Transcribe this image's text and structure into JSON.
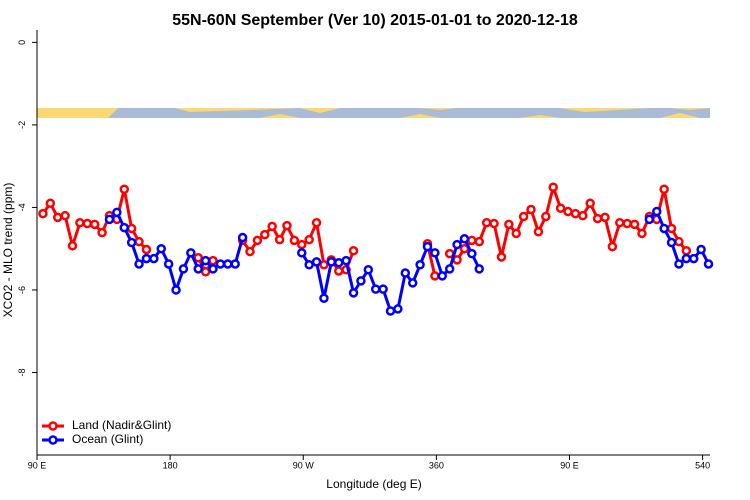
{
  "chart_data": {
    "type": "line",
    "title": "55N-60N September (Ver 10)   2015-01-01 to 2020-12-18",
    "x_label": "Longitude (deg E)",
    "y_label": "XCO2 - MLO trend (ppm)",
    "xlim": [
      90,
      545
    ],
    "xticks": [
      {
        "value": 90,
        "label": "90 E"
      },
      180,
      {
        "value": 270,
        "label": "90 W"
      },
      360,
      {
        "value": 450,
        "label": "90 E"
      },
      540
    ],
    "ylim": [
      -10,
      0.3
    ],
    "yticks": [
      0,
      -2,
      -4,
      -6,
      -8
    ],
    "legend": "bottom-left",
    "x": [
      94,
      99,
      104,
      109,
      114,
      119,
      124,
      129,
      134,
      139,
      144,
      149,
      154,
      159,
      164,
      169,
      174,
      179,
      184,
      189,
      194,
      199,
      204,
      209,
      214,
      219,
      224,
      229,
      234,
      239,
      244,
      249,
      254,
      259,
      264,
      269,
      274,
      279,
      284,
      289,
      294,
      299,
      304,
      309,
      314,
      319,
      324,
      329,
      334,
      339,
      344,
      349,
      354,
      359,
      364,
      369,
      374,
      379,
      384,
      389,
      394,
      399,
      404,
      409,
      414,
      419,
      424,
      429,
      434,
      439,
      444,
      449,
      454,
      459,
      464,
      469,
      474,
      479,
      484,
      489,
      494,
      499,
      504,
      509,
      514,
      519,
      524,
      529,
      534,
      539,
      544
    ],
    "series": [
      {
        "name": "Land (Nadir&Glint)",
        "color": "#ff0000",
        "values": [
          -4.15,
          -3.9,
          -4.24,
          -4.2,
          -4.93,
          -4.37,
          -4.39,
          -4.41,
          -4.61,
          -4.2,
          -4.29,
          -3.56,
          -4.51,
          -4.83,
          -5.02,
          null,
          null,
          null,
          null,
          null,
          null,
          -5.22,
          -5.56,
          -5.29,
          null,
          null,
          null,
          -4.8,
          -5.07,
          -4.8,
          -4.66,
          -4.46,
          -4.78,
          -4.44,
          -4.8,
          -4.9,
          -4.78,
          -4.37,
          -5.39,
          -5.27,
          -5.54,
          -5.51,
          -5.05,
          null,
          null,
          null,
          null,
          null,
          null,
          null,
          null,
          null,
          -4.88,
          -5.66,
          null,
          -5.12,
          -5.27,
          -5.0,
          -4.8,
          -4.83,
          -4.37,
          -4.39,
          -5.2,
          -4.41,
          -4.63,
          -4.22,
          -4.05,
          -4.59,
          -4.22,
          -3.51,
          -4.02,
          -4.1,
          -4.15,
          -4.2,
          -3.9,
          -4.27,
          -4.24,
          -4.95,
          -4.37,
          -4.39,
          -4.41,
          -4.63,
          -4.22,
          -4.29,
          -3.56,
          -4.51,
          -4.83,
          -5.05,
          null,
          null,
          null
        ]
      },
      {
        "name": "Ocean (Glint)",
        "color": "#0000ff",
        "values": [
          null,
          null,
          null,
          null,
          null,
          null,
          null,
          null,
          null,
          -4.29,
          -4.12,
          -4.49,
          -4.85,
          -5.37,
          -5.24,
          -5.24,
          -5.0,
          -5.37,
          -6.0,
          -5.49,
          -5.1,
          -5.49,
          -5.29,
          -5.49,
          -5.37,
          -5.37,
          -5.37,
          -4.73,
          null,
          null,
          null,
          null,
          null,
          null,
          null,
          -5.1,
          -5.39,
          -5.32,
          -6.2,
          -5.32,
          -5.34,
          -5.29,
          -6.07,
          -5.78,
          -5.51,
          -5.98,
          -5.98,
          -6.51,
          -6.46,
          -5.59,
          -5.83,
          -5.39,
          -4.95,
          -5.1,
          -5.66,
          -5.49,
          -4.9,
          -4.76,
          -5.12,
          -5.49,
          null,
          null,
          null,
          null,
          null,
          null,
          null,
          null,
          null,
          null,
          null,
          null,
          null,
          null,
          null,
          null,
          null,
          null,
          null,
          null,
          null,
          null,
          -4.29,
          -4.1,
          -4.51,
          -4.85,
          -5.37,
          -5.24,
          -5.24,
          -5.02,
          -5.37
        ]
      }
    ]
  }
}
